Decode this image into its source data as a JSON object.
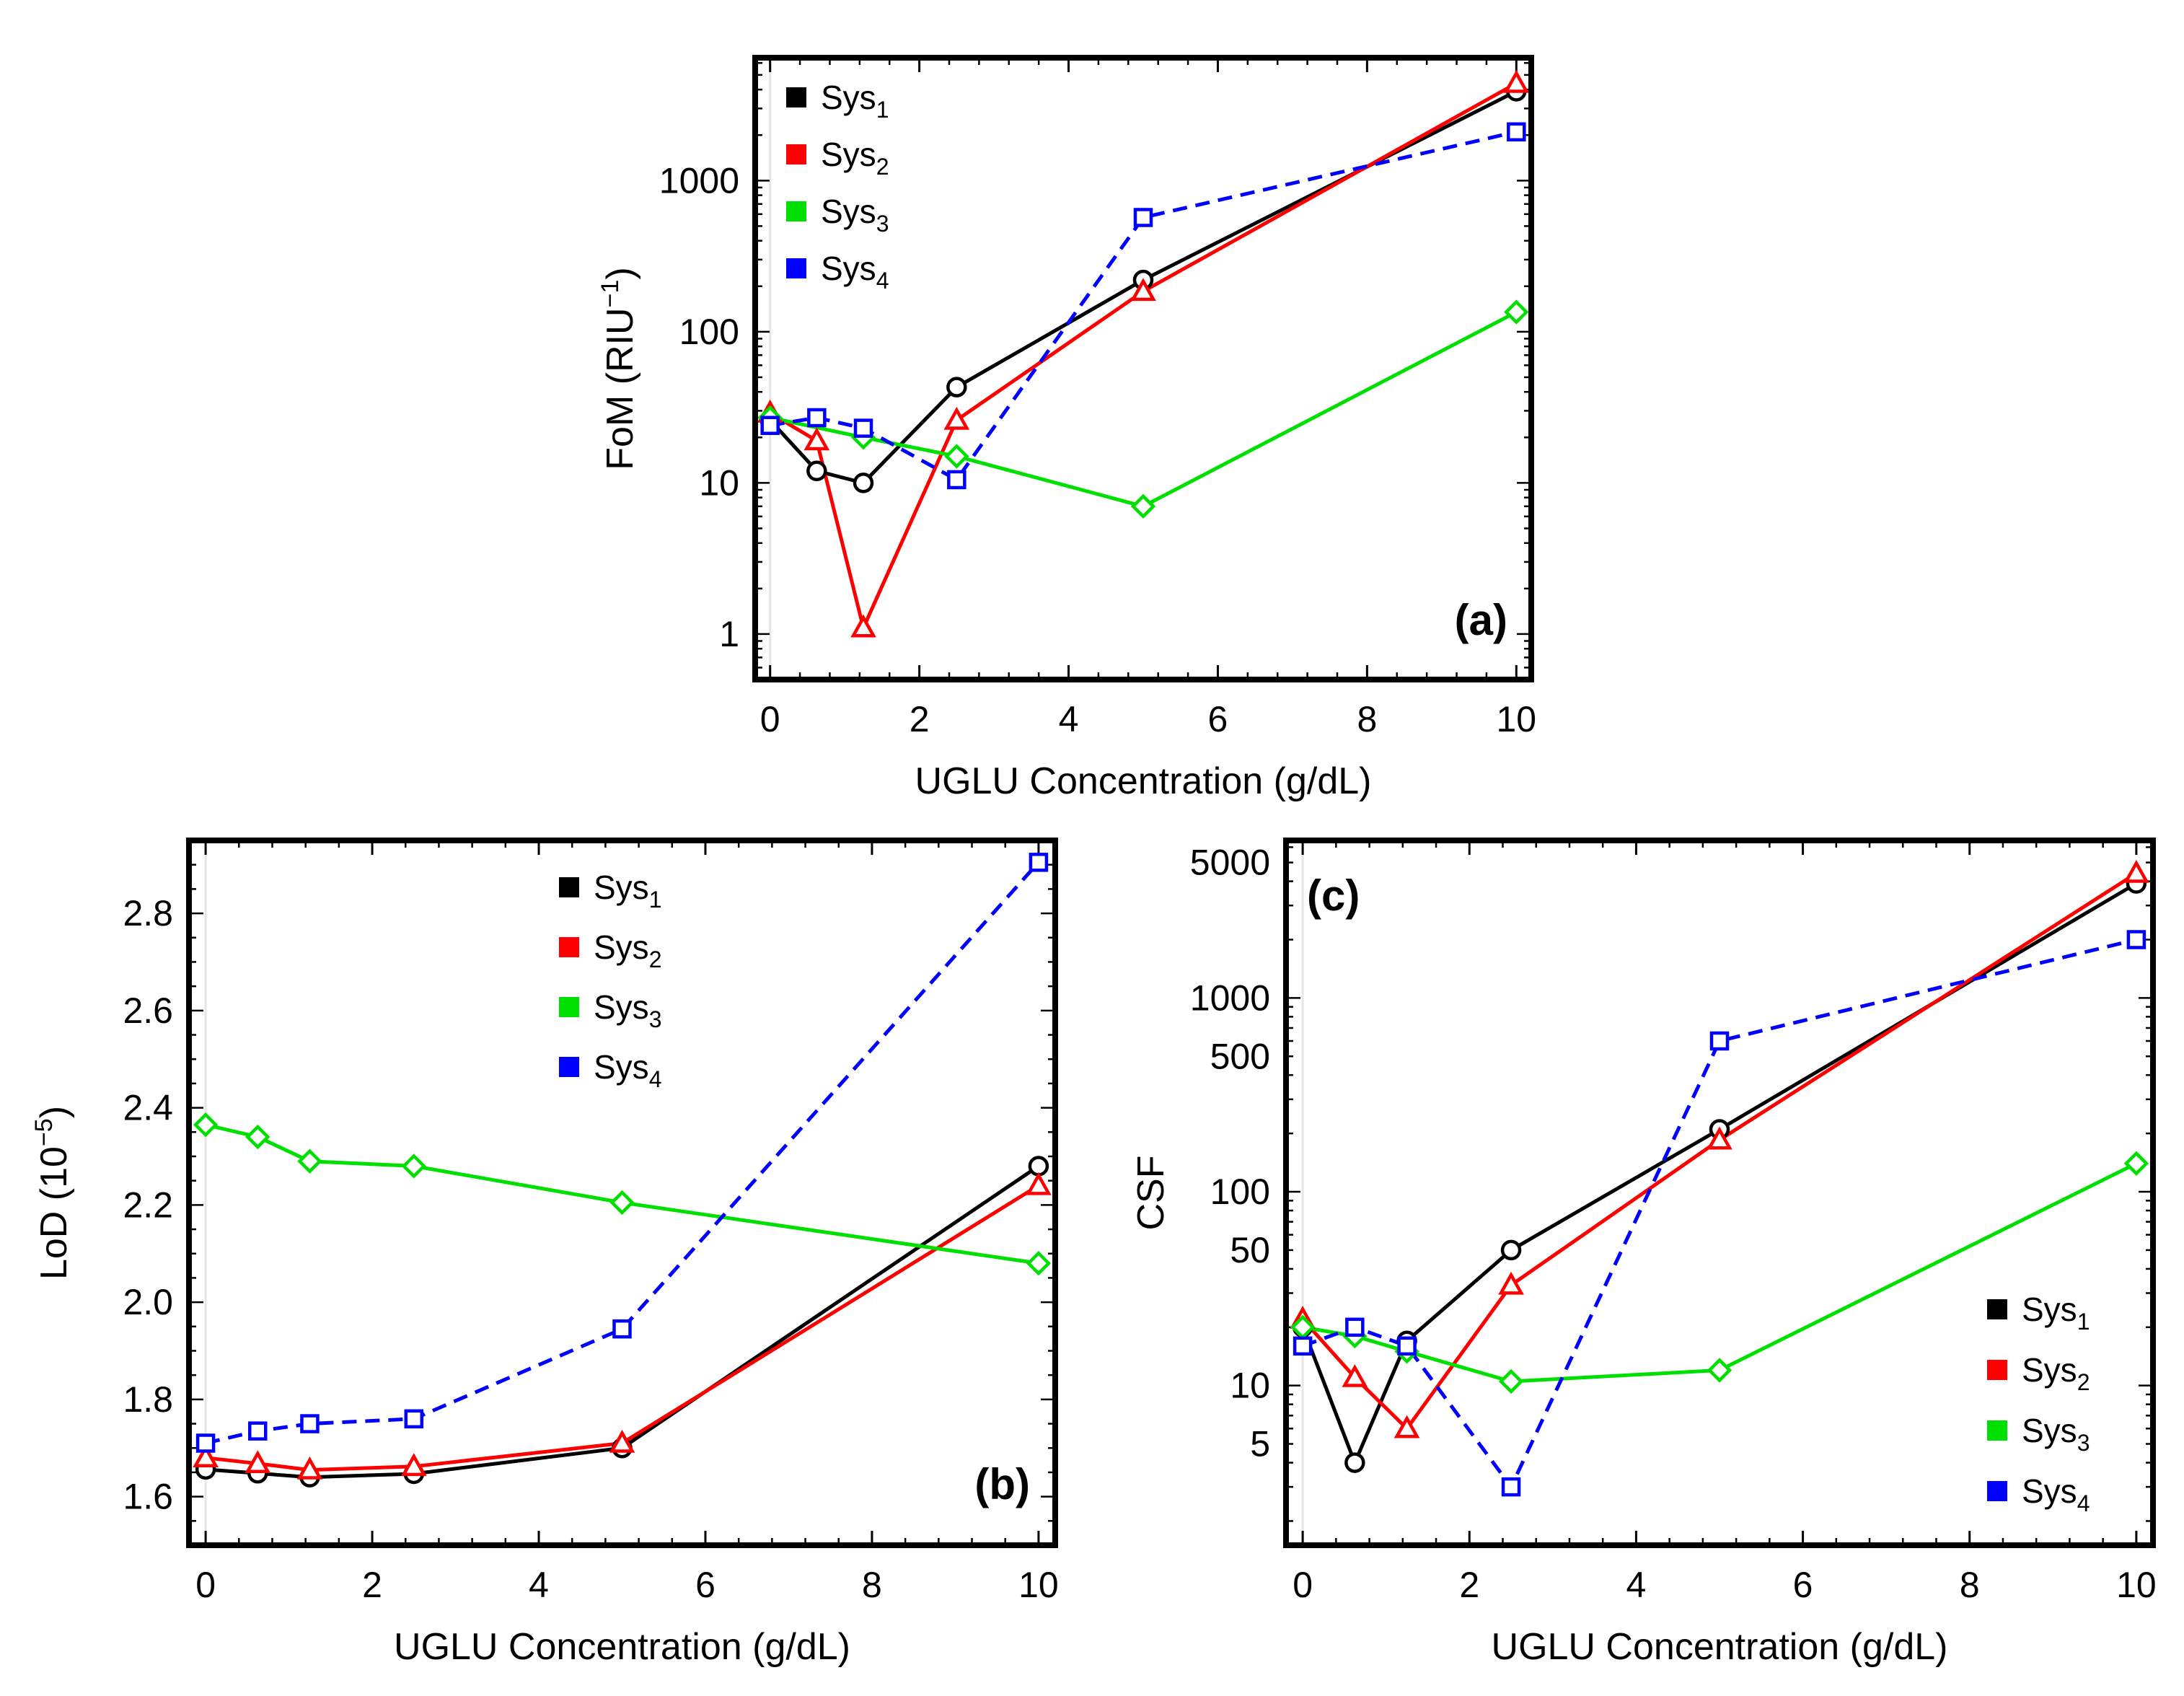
{
  "chart_data": [
    {
      "type": "line",
      "id": "a",
      "panel_label": "(a)",
      "xlabel": "UGLU Concentration (g/dL)",
      "ylabel": {
        "main": "FoM (RIU",
        "sup": "−1",
        "end": ")"
      },
      "yscale": "log",
      "xlim": [
        -0.2,
        10.2
      ],
      "ylim": [
        0.5,
        6500
      ],
      "xticks": [
        "0",
        "2",
        "4",
        "6",
        "8",
        "10"
      ],
      "yticks": [
        "1",
        "10",
        "100",
        "1000"
      ],
      "legend_position": "top-left",
      "series": [
        {
          "name": "Sys",
          "sub": "1",
          "color": "#000000",
          "marker": "circle",
          "dashed": false,
          "x": [
            0,
            0.625,
            1.25,
            2.5,
            5,
            10
          ],
          "y": [
            26,
            12,
            10,
            43,
            220,
            3900
          ]
        },
        {
          "name": "Sys",
          "sub": "2",
          "color": "#ff0000",
          "marker": "triangle",
          "dashed": false,
          "x": [
            0,
            0.625,
            1.25,
            2.5,
            5,
            10
          ],
          "y": [
            29,
            19,
            1.1,
            26,
            185,
            4400
          ]
        },
        {
          "name": "Sys",
          "sub": "3",
          "color": "#00e000",
          "marker": "diamond",
          "dashed": false,
          "x": [
            0,
            1.25,
            2.5,
            5,
            10
          ],
          "y": [
            27,
            20,
            15,
            7,
            135
          ]
        },
        {
          "name": "Sys",
          "sub": "4",
          "color": "#0000ff",
          "marker": "square",
          "dashed": true,
          "x": [
            0,
            0.625,
            1.25,
            2.5,
            5,
            10
          ],
          "y": [
            24,
            27,
            23,
            10.5,
            570,
            2100
          ]
        }
      ]
    },
    {
      "type": "line",
      "id": "b",
      "panel_label": "(b)",
      "xlabel": "UGLU Concentration (g/dL)",
      "ylabel": {
        "main": "LoD (10",
        "sup": "−5",
        "end": ")"
      },
      "yscale": "linear",
      "xlim": [
        -0.2,
        10.2
      ],
      "ylim": [
        1.5,
        2.95
      ],
      "xticks": [
        "0",
        "2",
        "4",
        "6",
        "8",
        "10"
      ],
      "yticks": [
        "1.6",
        "1.8",
        "2.0",
        "2.2",
        "2.4",
        "2.6",
        "2.8"
      ],
      "legend_position": "top-right",
      "series": [
        {
          "name": "Sys",
          "sub": "1",
          "color": "#000000",
          "marker": "circle",
          "dashed": false,
          "x": [
            0,
            0.625,
            1.25,
            2.5,
            5,
            10
          ],
          "y": [
            1.656,
            1.648,
            1.64,
            1.647,
            1.7,
            2.28
          ]
        },
        {
          "name": "Sys",
          "sub": "2",
          "color": "#ff0000",
          "marker": "triangle",
          "dashed": false,
          "x": [
            0,
            0.625,
            1.25,
            2.5,
            5,
            10
          ],
          "y": [
            1.68,
            1.668,
            1.655,
            1.662,
            1.71,
            2.24
          ]
        },
        {
          "name": "Sys",
          "sub": "3",
          "color": "#00e000",
          "marker": "diamond",
          "dashed": false,
          "x": [
            0,
            0.625,
            1.25,
            2.5,
            5,
            10
          ],
          "y": [
            2.365,
            2.34,
            2.29,
            2.28,
            2.205,
            2.08
          ]
        },
        {
          "name": "Sys",
          "sub": "4",
          "color": "#0000ff",
          "marker": "square",
          "dashed": true,
          "x": [
            0,
            0.625,
            1.25,
            2.5,
            5,
            10
          ],
          "y": [
            1.71,
            1.735,
            1.75,
            1.76,
            1.945,
            2.905
          ]
        }
      ]
    },
    {
      "type": "line",
      "id": "c",
      "panel_label": "(c)",
      "xlabel": "UGLU Concentration (g/dL)",
      "ylabel": {
        "main": "CSF",
        "sup": "",
        "end": ""
      },
      "yscale": "log",
      "xlim": [
        -0.2,
        10.2
      ],
      "ylim": [
        1.5,
        6500
      ],
      "xticks": [
        "0",
        "2",
        "4",
        "6",
        "8",
        "10"
      ],
      "yticks": [
        "5",
        "10",
        "50",
        "100",
        "500",
        "1000",
        "5000"
      ],
      "legend_position": "bottom-right",
      "series": [
        {
          "name": "Sys",
          "sub": "1",
          "color": "#000000",
          "marker": "circle",
          "dashed": false,
          "x": [
            0,
            0.625,
            1.25,
            2.5,
            5,
            10
          ],
          "y": [
            20,
            4,
            17,
            50,
            210,
            3900
          ]
        },
        {
          "name": "Sys",
          "sub": "2",
          "color": "#ff0000",
          "marker": "triangle",
          "dashed": false,
          "x": [
            0,
            0.625,
            1.25,
            2.5,
            5,
            10
          ],
          "y": [
            22,
            11,
            6,
            33,
            185,
            4400
          ]
        },
        {
          "name": "Sys",
          "sub": "3",
          "color": "#00e000",
          "marker": "diamond",
          "dashed": false,
          "x": [
            0,
            0.625,
            1.25,
            2.5,
            5,
            10
          ],
          "y": [
            20,
            18,
            15,
            10.5,
            12,
            140
          ]
        },
        {
          "name": "Sys",
          "sub": "4",
          "color": "#0000ff",
          "marker": "square",
          "dashed": true,
          "x": [
            0,
            0.625,
            1.25,
            2.5,
            5,
            10
          ],
          "y": [
            16,
            20,
            16,
            3,
            600,
            2000
          ]
        }
      ]
    }
  ]
}
